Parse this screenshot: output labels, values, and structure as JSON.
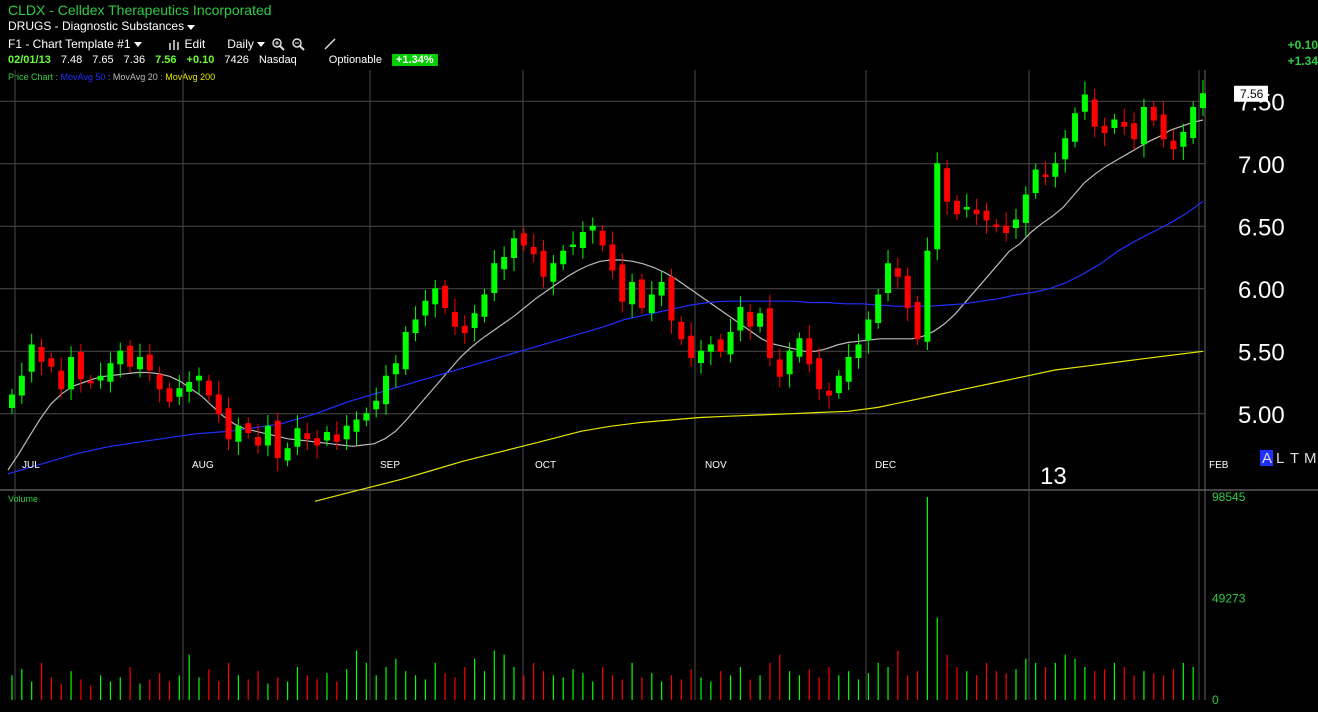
{
  "header": {
    "title": "CLDX - Celldex Therapeutics Incorporated",
    "sector": "DRUGS - Diagnostic Substances",
    "template": "F1 - Chart Template #1",
    "edit_label": "Edit",
    "period": "Daily",
    "change_top": "+0.10",
    "pct_top": "+1.34"
  },
  "quote": {
    "date": "02/01/13",
    "open": "7.48",
    "high": "7.65",
    "low": "7.36",
    "last": "7.56",
    "change": "+0.10",
    "volume": "7426",
    "exchange": "Nasdaq",
    "optionable": "Optionable",
    "pct": "+1.34%"
  },
  "legend": {
    "price": "Price Chart : ",
    "ma50": "MovAvg 50",
    "ma20": "MovAvg 20",
    "ma200": "MovAvg 200",
    "sep": " : "
  },
  "colors": {
    "up": "#00ff00",
    "down": "#ff0000",
    "ma20": "#bbbbbb",
    "ma50": "#1f2fff",
    "ma200": "#e6e600",
    "grid": "#4a4a4a"
  },
  "chart_data": {
    "type": "candlestick",
    "ylim": [
      4.55,
      7.75
    ],
    "y_ticks": [
      "7.50",
      "7.00",
      "6.50",
      "6.00",
      "5.50",
      "5.00"
    ],
    "y_tick_values": [
      7.5,
      7.0,
      6.5,
      6.0,
      5.5,
      5.0
    ],
    "last_price_label": "7.56",
    "month_labels": [
      "JUL",
      "AUG",
      "SEP",
      "OCT",
      "NOV",
      "DEC",
      "FEB"
    ],
    "year_label": "13",
    "corner_labels": [
      "A",
      "L",
      "T",
      "M"
    ],
    "volume": {
      "label": "Volume",
      "ticks": [
        "98545",
        "49273",
        "0"
      ],
      "tick_values": [
        98545,
        49273,
        0
      ]
    },
    "closes": [
      5.15,
      5.3,
      5.55,
      5.42,
      5.38,
      5.2,
      5.45,
      5.28,
      5.25,
      5.3,
      5.4,
      5.5,
      5.38,
      5.45,
      5.35,
      5.2,
      5.1,
      5.2,
      5.25,
      5.3,
      5.15,
      5.0,
      4.8,
      4.9,
      4.85,
      4.75,
      4.9,
      4.65,
      4.72,
      4.88,
      4.8,
      4.75,
      4.85,
      4.78,
      4.9,
      4.95,
      5.0,
      5.1,
      5.3,
      5.4,
      5.65,
      5.75,
      5.9,
      6.0,
      5.85,
      5.7,
      5.65,
      5.8,
      5.95,
      6.2,
      6.25,
      6.4,
      6.35,
      6.28,
      6.1,
      6.2,
      6.3,
      6.35,
      6.45,
      6.5,
      6.35,
      6.15,
      5.9,
      6.05,
      5.85,
      5.95,
      6.05,
      5.75,
      5.6,
      5.45,
      5.5,
      5.55,
      5.5,
      5.65,
      5.85,
      5.7,
      5.8,
      5.45,
      5.3,
      5.5,
      5.6,
      5.4,
      5.2,
      5.15,
      5.3,
      5.45,
      5.55,
      5.75,
      5.95,
      6.2,
      6.1,
      5.85,
      5.6,
      6.3,
      7.0,
      6.7,
      6.6,
      6.65,
      6.6,
      6.55,
      6.5,
      6.45,
      6.55,
      6.75,
      6.95,
      6.9,
      7.0,
      7.2,
      7.4,
      7.55,
      7.3,
      7.25,
      7.35,
      7.3,
      7.2,
      7.45,
      7.35,
      7.2,
      7.12,
      7.25,
      7.45,
      7.56
    ],
    "ma20": [
      4.55,
      4.68,
      4.82,
      4.96,
      5.08,
      5.16,
      5.22,
      5.25,
      5.28,
      5.3,
      5.31,
      5.32,
      5.33,
      5.33,
      5.32,
      5.3,
      5.26,
      5.2,
      5.14,
      5.06,
      4.98,
      4.92,
      4.88,
      4.86,
      4.84,
      4.82,
      4.8,
      4.79,
      4.78,
      4.77,
      4.76,
      4.75,
      4.74,
      4.75,
      4.76,
      4.8,
      4.86,
      4.95,
      5.05,
      5.15,
      5.25,
      5.35,
      5.45,
      5.53,
      5.6,
      5.66,
      5.72,
      5.78,
      5.85,
      5.92,
      5.98,
      6.04,
      6.1,
      6.15,
      6.19,
      6.22,
      6.23,
      6.23,
      6.22,
      6.2,
      6.17,
      6.13,
      6.08,
      6.02,
      5.96,
      5.9,
      5.84,
      5.78,
      5.72,
      5.66,
      5.6,
      5.56,
      5.54,
      5.52,
      5.5,
      5.5,
      5.52,
      5.55,
      5.57,
      5.58,
      5.59,
      5.6,
      5.6,
      5.6,
      5.6,
      5.62,
      5.66,
      5.72,
      5.8,
      5.9,
      6.0,
      6.1,
      6.2,
      6.3,
      6.36,
      6.45,
      6.52,
      6.58,
      6.65,
      6.75,
      6.85,
      6.92,
      6.98,
      7.03,
      7.08,
      7.13,
      7.18,
      7.22,
      7.27,
      7.3,
      7.33,
      7.35
    ],
    "ma50": [
      4.52,
      4.56,
      4.6,
      4.64,
      4.68,
      4.71,
      4.74,
      4.76,
      4.78,
      4.8,
      4.82,
      4.84,
      4.85,
      4.86,
      4.88,
      4.9,
      4.92,
      4.96,
      5.0,
      5.05,
      5.1,
      5.14,
      5.18,
      5.22,
      5.26,
      5.3,
      5.34,
      5.38,
      5.42,
      5.46,
      5.5,
      5.54,
      5.58,
      5.62,
      5.66,
      5.7,
      5.75,
      5.78,
      5.81,
      5.84,
      5.87,
      5.89,
      5.9,
      5.9,
      5.9,
      5.9,
      5.9,
      5.89,
      5.89,
      5.88,
      5.88,
      5.87,
      5.86,
      5.86,
      5.86,
      5.87,
      5.88,
      5.9,
      5.92,
      5.95,
      5.97,
      6.0,
      6.05,
      6.12,
      6.2,
      6.3,
      6.38,
      6.45,
      6.52,
      6.6,
      6.7
    ],
    "ma200": [
      4.3,
      4.36,
      4.42,
      4.48,
      4.55,
      4.62,
      4.68,
      4.74,
      4.8,
      4.86,
      4.9,
      4.93,
      4.95,
      4.97,
      4.98,
      4.99,
      5.0,
      5.01,
      5.02,
      5.05,
      5.1,
      5.15,
      5.2,
      5.25,
      5.3,
      5.35,
      5.38,
      5.41,
      5.44,
      5.47,
      5.5
    ],
    "volume_values": [
      12000,
      15000,
      9000,
      18000,
      11000,
      8000,
      14000,
      10000,
      7000,
      12000,
      9000,
      11000,
      16000,
      8000,
      10000,
      13000,
      9000,
      12000,
      22000,
      11000,
      15000,
      9000,
      18000,
      12000,
      10000,
      14000,
      8000,
      11000,
      9000,
      16000,
      12000,
      10000,
      13000,
      9000,
      15000,
      24000,
      18000,
      12000,
      16000,
      20000,
      14000,
      12000,
      10000,
      18000,
      13000,
      11000,
      16000,
      20000,
      14000,
      24000,
      22000,
      16000,
      12000,
      18000,
      14000,
      12000,
      11000,
      15000,
      13000,
      9000,
      16000,
      12000,
      10000,
      18000,
      11000,
      13000,
      9000,
      12000,
      10000,
      15000,
      11000,
      9000,
      14000,
      12000,
      16000,
      10000,
      12000,
      18000,
      22000,
      14000,
      12000,
      15000,
      11000,
      16000,
      12000,
      14000,
      10000,
      13000,
      18000,
      16000,
      24000,
      12000,
      14000,
      98545,
      40000,
      22000,
      16000,
      14000,
      12000,
      18000,
      14000,
      13000,
      15000,
      20000,
      18000,
      16000,
      18000,
      22000,
      20000,
      16000,
      14000,
      15000,
      18000,
      16000,
      12000,
      14000,
      13000,
      12000,
      15000,
      18000,
      16000
    ]
  }
}
